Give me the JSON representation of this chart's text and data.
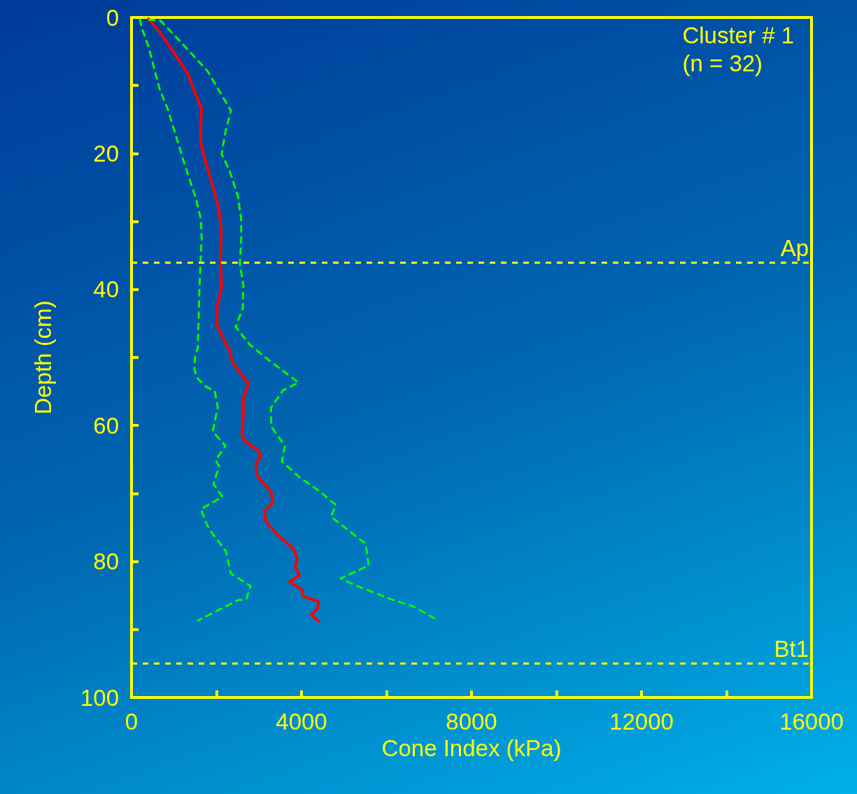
{
  "chart_data": {
    "type": "line",
    "xlabel": "Cone Index (kPa)",
    "ylabel": "Depth (cm)",
    "annotations": [
      "Cluster # 1\n(n = 32)"
    ],
    "xlim": [
      0,
      16000
    ],
    "xticks": [
      0,
      {
        "value": 2000,
        "label": null
      },
      4000,
      {
        "value": 6000,
        "label": null
      },
      8000,
      {
        "value": 10000,
        "label": null
      },
      12000,
      {
        "value": 14000,
        "label": null
      },
      16000
    ],
    "ylim": [
      100,
      0
    ],
    "yticks": [
      0,
      {
        "value": 10,
        "label": null
      },
      20,
      {
        "value": 30,
        "label": null
      },
      40,
      {
        "value": 50,
        "label": null
      },
      60,
      {
        "value": 70,
        "label": null
      },
      80,
      {
        "value": 90,
        "label": null
      },
      100
    ],
    "grid": false,
    "marker": "none",
    "series": [
      {
        "color": "#ff0000",
        "line_style": "solid",
        "x": [
          400,
          660,
          990,
          1320,
          1510,
          1650,
          1630,
          1630,
          1760,
          1930,
          2060,
          2110,
          2090,
          2120,
          2010,
          2010,
          2210,
          2300,
          2390,
          2750,
          2630,
          2630,
          2600,
          2650,
          3000,
          3030,
          2930,
          2950,
          3280,
          3330,
          3130,
          3160,
          3440,
          3820,
          3900,
          3850,
          3950,
          3720,
          4020,
          4030,
          4400,
          4380,
          4230,
          4400
        ],
        "values": [
          0.2,
          2.1,
          5.1,
          8.2,
          11.3,
          13.4,
          15.4,
          18.5,
          21.6,
          25.2,
          28.3,
          31.4,
          36,
          39.6,
          42.7,
          45.3,
          47.8,
          48.9,
          50.9,
          53.8,
          56.1,
          58.6,
          61.2,
          62.2,
          63.8,
          64.8,
          65.6,
          67.4,
          69.7,
          71.3,
          72.5,
          74.1,
          76.1,
          78.2,
          79.7,
          80.8,
          82,
          83,
          84.2,
          85.1,
          85.9,
          86.9,
          87.8,
          88.8
        ]
      },
      {
        "color": "#00ff00",
        "line_style": "dashed",
        "x": [
          200,
          230,
          400,
          660,
          860,
          1240,
          1510,
          1630,
          1650,
          1600,
          1560,
          1500,
          1480,
          1530,
          1730,
          1960,
          2030,
          1910,
          2210,
          1980,
          2060,
          1930,
          2140,
          1630,
          1790,
          1890,
          2220,
          2340,
          2800,
          2700,
          2500,
          2220,
          1560
        ],
        "values": [
          0.3,
          1.3,
          4.3,
          10.5,
          13.6,
          21.4,
          26.5,
          29.6,
          32.4,
          39.6,
          48.6,
          49.6,
          51.6,
          52.9,
          54.2,
          55,
          57.3,
          60.9,
          63,
          65.1,
          66,
          68.6,
          70.5,
          72.3,
          74.8,
          75.8,
          78.5,
          81.8,
          83.6,
          85.6,
          85.7,
          86.6,
          88.7
        ]
      },
      {
        "color": "#00ff00",
        "line_style": "dashed",
        "x": [
          410,
          690,
          1470,
          1790,
          2340,
          2210,
          2120,
          2300,
          2500,
          2580,
          2580,
          2550,
          2630,
          2620,
          2450,
          2780,
          3190,
          3930,
          3570,
          3280,
          3290,
          3610,
          3540,
          3950,
          4430,
          4810,
          4690,
          5510,
          5580,
          4920,
          5300,
          6170,
          6620,
          7230
        ],
        "values": [
          0.3,
          0.5,
          5.7,
          7.9,
          13.7,
          16.8,
          20.1,
          22.4,
          26.2,
          29.6,
          32.7,
          36.2,
          39.3,
          42.7,
          45.5,
          48.1,
          50.2,
          53.7,
          54.8,
          57.4,
          60.2,
          63,
          65.3,
          67.6,
          69.7,
          71.7,
          73.4,
          77.4,
          80.6,
          82.5,
          83.6,
          85.7,
          86.6,
          88.7
        ]
      }
    ],
    "ref_lines": [
      {
        "axis": "y",
        "value": 36,
        "label": "Ap",
        "color": "#ffff00",
        "line_style": "dashed"
      },
      {
        "axis": "y",
        "value": 95,
        "label": "Bt1",
        "color": "#ffff00",
        "line_style": "dashed"
      }
    ]
  }
}
